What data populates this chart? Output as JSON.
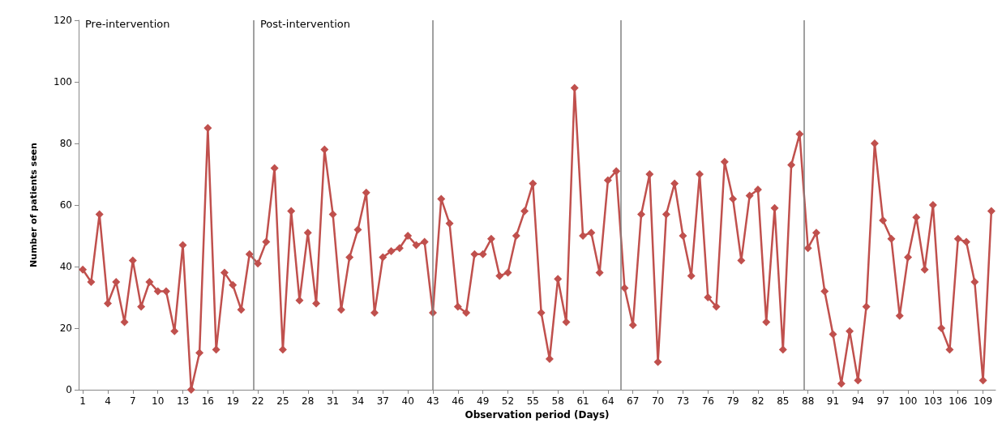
{
  "chart_data": {
    "type": "line",
    "xlabel": "Observation period (Days)",
    "ylabel": "Number of patients seen",
    "x": [
      1,
      2,
      3,
      4,
      5,
      6,
      7,
      8,
      9,
      10,
      11,
      12,
      13,
      14,
      15,
      16,
      17,
      18,
      19,
      20,
      21,
      22,
      23,
      24,
      25,
      26,
      27,
      28,
      29,
      30,
      31,
      32,
      33,
      34,
      35,
      36,
      37,
      38,
      39,
      40,
      41,
      42,
      43,
      44,
      45,
      46,
      47,
      48,
      49,
      50,
      51,
      52,
      53,
      54,
      55,
      56,
      57,
      58,
      59,
      60,
      61,
      62,
      63,
      64,
      65,
      66,
      67,
      68,
      69,
      70,
      71,
      72,
      73,
      74,
      75,
      76,
      77,
      78,
      79,
      80,
      81,
      82,
      83,
      84,
      85,
      86,
      87,
      88,
      89,
      90,
      91,
      92,
      93,
      94,
      95,
      96,
      97,
      98,
      99,
      100,
      101,
      102,
      103,
      104,
      105,
      106,
      107,
      108,
      109,
      110
    ],
    "series": [
      {
        "color": "#c0504d",
        "values": [
          39,
          35,
          57,
          28,
          35,
          22,
          42,
          27,
          35,
          32,
          32,
          19,
          47,
          0,
          12,
          85,
          13,
          38,
          34,
          26,
          44,
          41,
          48,
          72,
          13,
          58,
          29,
          51,
          28,
          78,
          57,
          26,
          43,
          52,
          64,
          25,
          43,
          45,
          46,
          50,
          47,
          48,
          25,
          62,
          54,
          27,
          25,
          44,
          44,
          49,
          37,
          38,
          50,
          58,
          67,
          25,
          10,
          36,
          22,
          98,
          50,
          51,
          38,
          68,
          71,
          33,
          21,
          57,
          70,
          9,
          57,
          67,
          50,
          37,
          70,
          30,
          27,
          74,
          62,
          42,
          63,
          65,
          22,
          59,
          13,
          73,
          83,
          46,
          51,
          32,
          18,
          2,
          19,
          3,
          27,
          80,
          55,
          49,
          24,
          43,
          56,
          39,
          60,
          20,
          13,
          49,
          48,
          35,
          3,
          58
        ]
      }
    ],
    "xlim": [
      0.5,
      110.5
    ],
    "xticks": [
      1,
      4,
      7,
      10,
      13,
      16,
      19,
      22,
      25,
      28,
      31,
      34,
      37,
      40,
      43,
      46,
      49,
      52,
      55,
      58,
      61,
      64,
      67,
      70,
      73,
      76,
      79,
      82,
      85,
      88,
      91,
      94,
      97,
      100,
      103,
      106,
      109
    ],
    "ylim": [
      0,
      120
    ],
    "yticks": [
      0,
      20,
      40,
      60,
      80,
      100,
      120
    ],
    "grid": false,
    "marker": "diamond",
    "line_style": "solid",
    "ref_lines": [
      {
        "axis": "x",
        "value": 21.5,
        "color": "#808080"
      },
      {
        "axis": "x",
        "value": 43,
        "color": "#808080"
      },
      {
        "axis": "x",
        "value": 65.5,
        "color": "#808080"
      },
      {
        "axis": "x",
        "value": 87.5,
        "color": "#808080"
      }
    ],
    "annotations": [
      "Pre-intervention",
      "Post-intervention"
    ]
  }
}
